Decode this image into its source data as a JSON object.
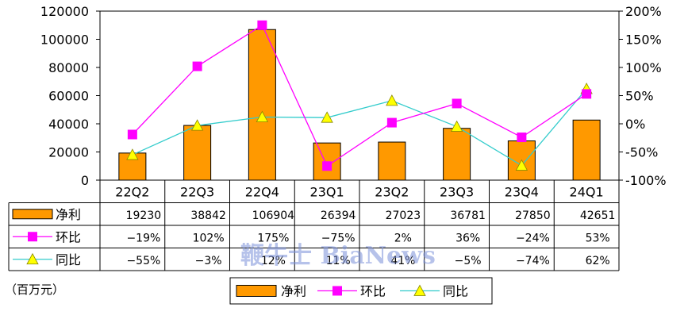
{
  "chart_data": {
    "type": "bar",
    "categories": [
      "22Q2",
      "22Q3",
      "22Q4",
      "23Q1",
      "23Q2",
      "23Q3",
      "23Q4",
      "24Q1"
    ],
    "series": [
      {
        "name": "净利",
        "type": "bar",
        "axis": "left",
        "color": "#ff9900",
        "values": [
          19230,
          38842,
          106904,
          26394,
          27023,
          36781,
          27850,
          42651
        ]
      },
      {
        "name": "环比",
        "type": "line",
        "axis": "right",
        "color": "#ff00ff",
        "marker": "square",
        "values": [
          -19,
          102,
          175,
          -75,
          2,
          36,
          -24,
          53
        ]
      },
      {
        "name": "同比",
        "type": "line",
        "axis": "right",
        "color": "#33cccc",
        "marker": "triangle",
        "marker_color": "#ffff00",
        "values": [
          -55,
          -3,
          12,
          11,
          41,
          -5,
          -74,
          62
        ]
      }
    ],
    "table_rows": [
      [
        "19230",
        "38842",
        "106904",
        "26394",
        "27023",
        "36781",
        "27850",
        "42651"
      ],
      [
        "−19%",
        "102%",
        "175%",
        "−75%",
        "2%",
        "36%",
        "−24%",
        "53%"
      ],
      [
        "−55%",
        "−3%",
        "12%",
        "11%",
        "41%",
        "−5%",
        "−74%",
        "62%"
      ]
    ],
    "y_left": {
      "min": 0,
      "max": 120000,
      "step": 20000,
      "ticks": [
        "0",
        "20000",
        "40000",
        "60000",
        "80000",
        "100000",
        "120000"
      ]
    },
    "y_right": {
      "min": -100,
      "max": 200,
      "step": 50,
      "ticks": [
        "-100%",
        "-50%",
        "0%",
        "50%",
        "100%",
        "150%",
        "200%"
      ]
    },
    "unit_label": "（百万元）",
    "legend": {
      "placement": "bottom",
      "items": [
        "净利",
        "环比",
        "同比"
      ]
    },
    "watermark": "鞭牛士 BiaNews"
  }
}
